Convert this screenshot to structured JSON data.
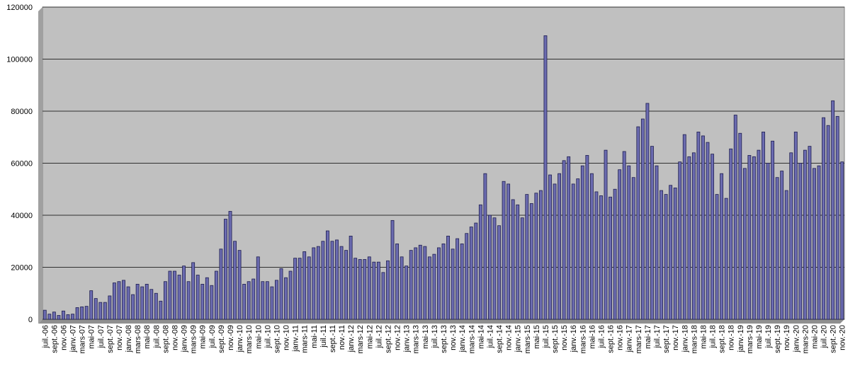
{
  "chart_data": {
    "type": "bar",
    "categories": [
      "juil.-06",
      null,
      "sept.-06",
      null,
      "nov.-06",
      null,
      "janv.-07",
      null,
      "mars-07",
      null,
      "mai-07",
      null,
      "juil.-07",
      null,
      "sept.-07",
      null,
      "nov.-07",
      null,
      "janv.-08",
      null,
      "mars-08",
      null,
      "mai-08",
      null,
      "juil.-08",
      null,
      "sept.-08",
      null,
      "nov.-08",
      null,
      "janv.-09",
      null,
      "mars-09",
      null,
      "mai-09",
      null,
      "juil.-09",
      null,
      "sept.-09",
      null,
      "nov.-09",
      null,
      "janv.-10",
      null,
      "mars-10",
      null,
      "mai-10",
      null,
      "juil.-10",
      null,
      "sept.-10",
      null,
      "nov.-10",
      null,
      "janv.-11",
      null,
      "mars-11",
      null,
      "mai-11",
      null,
      "juil.-11",
      null,
      "sept.-11",
      null,
      "nov.-11",
      null,
      "janv.-12",
      null,
      "mars-12",
      null,
      "mai-12",
      null,
      "juil.-12",
      null,
      "sept.-12",
      null,
      "nov.-12",
      null,
      "janv.-13",
      null,
      "mars-13",
      null,
      "mai-13",
      null,
      "juil.-13",
      null,
      "sept.-13",
      null,
      "nov.-13",
      null,
      "janv.-14",
      null,
      "mars-14",
      null,
      "mai-14",
      null,
      "juil.-14",
      null,
      "sept.-14",
      null,
      "nov.-14",
      null,
      "janv.-15",
      null,
      "mars-15",
      null,
      "mai-15",
      null,
      "juil.-15",
      null,
      "sept.-15",
      null,
      "nov.-15",
      null,
      "janv.-16",
      null,
      "mars-16",
      null,
      "mai-16",
      null,
      "juil.-16",
      null,
      "sept.-16",
      null,
      "nov.-16",
      null,
      "janv.-17",
      null,
      "mars-17",
      null,
      "mai-17",
      null,
      "juil.-17",
      null,
      "sept.-17",
      null,
      "nov.-17",
      null,
      "janv.-18",
      null,
      "mars-18",
      null,
      "mai-18",
      null,
      "juil.-18",
      null,
      "sept.-18",
      null,
      "nov.-18",
      null,
      "janv.-19",
      null,
      "mars-19",
      null,
      "mai-19",
      null,
      "juil.-19",
      null,
      "sept.-19",
      null,
      "nov.-19",
      null,
      "janv.-20",
      null,
      "mars-20",
      null,
      "mai-20",
      null,
      "juil.-20",
      null,
      "sept.-20",
      null,
      "nov.-20"
    ],
    "values": [
      3500,
      2000,
      2800,
      1500,
      3200,
      1800,
      2000,
      4500,
      4800,
      5000,
      11000,
      8000,
      6500,
      6500,
      9000,
      14000,
      14500,
      15000,
      12500,
      9500,
      13500,
      12500,
      13500,
      11500,
      10000,
      7000,
      14500,
      18500,
      18500,
      17000,
      20500,
      14500,
      21800,
      17000,
      13500,
      16000,
      13000,
      18500,
      27000,
      38500,
      41500,
      30000,
      26500,
      13500,
      14500,
      15500,
      24000,
      14500,
      14500,
      12500,
      15000,
      19500,
      16000,
      18500,
      23500,
      23500,
      26000,
      24000,
      27500,
      28000,
      30000,
      34000,
      30000,
      30500,
      28000,
      26500,
      32000,
      23500,
      23000,
      23000,
      24000,
      22000,
      22000,
      18000,
      22500,
      38000,
      29000,
      24000,
      20500,
      26500,
      27500,
      28500,
      28000,
      24000,
      25000,
      27500,
      29000,
      32000,
      27000,
      31000,
      29000,
      33000,
      35500,
      37000,
      44000,
      56000,
      40000,
      39000,
      36000,
      53000,
      52000,
      46000,
      44000,
      39000,
      48000,
      44500,
      48500,
      49500,
      109000,
      55500,
      52000,
      56000,
      61000,
      62500,
      52000,
      54000,
      59000,
      63000,
      56000,
      49000,
      47500,
      65000,
      47000,
      50000,
      57500,
      64500,
      59000,
      54500,
      74000,
      77000,
      83000,
      66500,
      59000,
      49500,
      48000,
      51500,
      50500,
      60500,
      71000,
      62500,
      64000,
      72000,
      70500,
      68000,
      63500,
      48000,
      56000,
      46500,
      65500,
      78500,
      71500,
      58000,
      63000,
      62500,
      65000,
      72000,
      60000,
      68500,
      54500,
      57000,
      49500,
      64000,
      72000,
      60000,
      65000,
      66500,
      58000,
      59000,
      77500,
      74500,
      84000,
      78000,
      60500
    ],
    "color": "#6b6bb0",
    "ylim": [
      0,
      120000
    ],
    "yticks": [
      0,
      20000,
      40000,
      60000,
      80000,
      100000,
      120000
    ],
    "grid": true
  }
}
